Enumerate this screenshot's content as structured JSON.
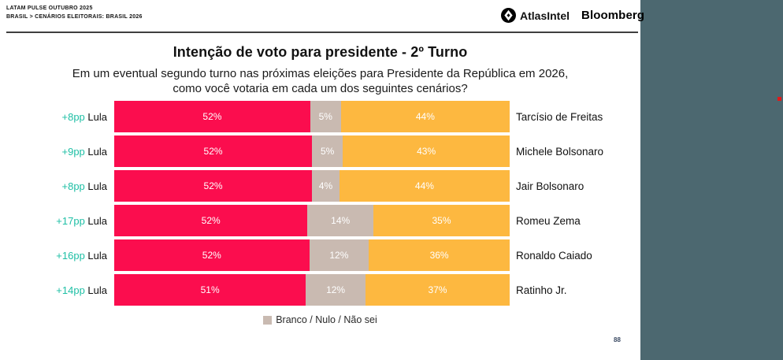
{
  "header": {
    "kicker_line1": "LATAM PULSE OUTUBRO 2025",
    "kicker_line2": "BRASIL > CENÁRIOS ELEITORAIS: BRASIL 2026",
    "brand_atlas": "AtlasIntel",
    "brand_bloomberg": "Bloomberg"
  },
  "chart_data": {
    "type": "bar",
    "orientation": "horizontal",
    "stacked": true,
    "title": "Intenção de voto para presidente - 2º Turno",
    "subtitle_line1": "Em um eventual segundo turno nas próximas eleições para Presidente da República em 2026,",
    "subtitle_line2": "como você votaria em cada um dos seguintes cenários?",
    "unit": "%",
    "segment_keys": [
      "lula",
      "branco_nulo_nao_sei",
      "adversario"
    ],
    "rows": [
      {
        "lead_margin": "+8pp",
        "lead_candidate": "Lula",
        "values": [
          52,
          5,
          44
        ],
        "opponent": "Tarcísio de Freitas"
      },
      {
        "lead_margin": "+9pp",
        "lead_candidate": "Lula",
        "values": [
          52,
          5,
          43
        ],
        "opponent": "Michele Bolsonaro"
      },
      {
        "lead_margin": "+8pp",
        "lead_candidate": "Lula",
        "values": [
          52,
          4,
          44
        ],
        "opponent": "Jair Bolsonaro"
      },
      {
        "lead_margin": "+17pp",
        "lead_candidate": "Lula",
        "values": [
          52,
          14,
          35
        ],
        "opponent": "Romeu Zema"
      },
      {
        "lead_margin": "+16pp",
        "lead_candidate": "Lula",
        "values": [
          52,
          12,
          36
        ],
        "opponent": "Ronaldo Caiado"
      },
      {
        "lead_margin": "+14pp",
        "lead_candidate": "Lula",
        "values": [
          51,
          12,
          37
        ],
        "opponent": "Ratinho Jr."
      }
    ],
    "colors": {
      "lula": "#FB0D4E",
      "branco_nulo_nao_sei": "#C9BAB1",
      "adversario": "#FDB840",
      "margin_text": "#1EBFA5",
      "side_panel": "#4C6870",
      "red_marker": "#E01A1A"
    }
  },
  "legend": {
    "label": "Branco / Nulo / Não sei"
  },
  "footer": {
    "page_number": "88"
  }
}
